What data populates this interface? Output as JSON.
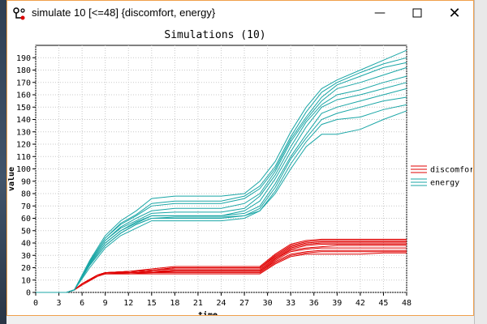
{
  "window": {
    "title": "simulate 10 [<=48] {discomfort, energy}",
    "controls": {
      "minimize": "—",
      "maximize": "☐",
      "close": "✕"
    }
  },
  "chart_data": {
    "type": "line",
    "title": "Simulations (10)",
    "xlabel": "time",
    "ylabel": "value",
    "xlim": [
      0,
      48
    ],
    "ylim": [
      0,
      200
    ],
    "xticks": [
      0,
      3,
      6,
      9,
      12,
      15,
      18,
      21,
      24,
      27,
      30,
      33,
      36,
      39,
      42,
      45,
      48
    ],
    "yticks": [
      0,
      10,
      20,
      30,
      40,
      50,
      60,
      70,
      80,
      90,
      100,
      110,
      120,
      130,
      140,
      150,
      160,
      170,
      180,
      190
    ],
    "grid": true,
    "legend_position": "right",
    "colors": {
      "discomfort": "#e00000",
      "energy": "#1aa6a6"
    },
    "series": [
      {
        "name": "discomfort",
        "runs": [
          {
            "x": [
              0,
              4,
              5,
              6,
              8,
              9,
              12,
              15,
              18,
              21,
              24,
              27,
              29,
              31,
              33,
              35,
              37,
              39,
              42,
              45,
              48
            ],
            "y": [
              0,
              0,
              2,
              6,
              13,
              15,
              15,
              16,
              16,
              16,
              16,
              16,
              16,
              24,
              30,
              32,
              33,
              33,
              33,
              33,
              33
            ]
          },
          {
            "x": [
              0,
              4,
              5,
              6,
              8,
              9,
              12,
              15,
              18,
              21,
              24,
              27,
              29,
              31,
              33,
              35,
              37,
              39,
              42,
              45,
              48
            ],
            "y": [
              0,
              0,
              2,
              7,
              13,
              15,
              15,
              15,
              15,
              15,
              15,
              15,
              15,
              23,
              29,
              31,
              31,
              31,
              31,
              32,
              32
            ]
          },
          {
            "x": [
              0,
              4,
              5,
              6,
              8,
              9,
              12,
              15,
              18,
              21,
              24,
              27,
              29,
              31,
              33,
              35,
              37,
              39,
              42,
              45,
              48
            ],
            "y": [
              0,
              0,
              2,
              7,
              14,
              15,
              16,
              16,
              17,
              17,
              17,
              17,
              17,
              25,
              31,
              33,
              34,
              34,
              34,
              34,
              34
            ]
          },
          {
            "x": [
              0,
              4,
              5,
              6,
              8,
              9,
              12,
              15,
              18,
              21,
              24,
              27,
              29,
              31,
              33,
              35,
              37,
              39,
              42,
              45,
              48
            ],
            "y": [
              0,
              0,
              2,
              7,
              14,
              16,
              16,
              17,
              17,
              17,
              17,
              17,
              17,
              26,
              33,
              35,
              36,
              36,
              36,
              36,
              36
            ]
          },
          {
            "x": [
              0,
              4,
              5,
              6,
              8,
              9,
              12,
              15,
              18,
              21,
              24,
              27,
              29,
              31,
              33,
              35,
              37,
              39,
              42,
              45,
              48
            ],
            "y": [
              0,
              0,
              2,
              7,
              14,
              16,
              16,
              17,
              18,
              18,
              18,
              18,
              18,
              27,
              34,
              36,
              37,
              38,
              38,
              38,
              38
            ]
          },
          {
            "x": [
              0,
              4,
              5,
              6,
              8,
              9,
              12,
              15,
              18,
              21,
              24,
              27,
              29,
              31,
              33,
              35,
              37,
              39,
              42,
              45,
              48
            ],
            "y": [
              0,
              0,
              2,
              7,
              14,
              16,
              16,
              17,
              18,
              18,
              18,
              18,
              18,
              27,
              35,
              38,
              39,
              39,
              39,
              39,
              39
            ]
          },
          {
            "x": [
              0,
              4,
              5,
              6,
              8,
              9,
              12,
              15,
              18,
              21,
              24,
              27,
              29,
              31,
              33,
              35,
              37,
              39,
              42,
              45,
              48
            ],
            "y": [
              0,
              0,
              2,
              7,
              14,
              16,
              17,
              18,
              19,
              19,
              19,
              19,
              19,
              28,
              36,
              39,
              40,
              40,
              40,
              40,
              40
            ]
          },
          {
            "x": [
              0,
              4,
              5,
              6,
              8,
              9,
              12,
              15,
              18,
              21,
              24,
              27,
              29,
              31,
              33,
              35,
              37,
              39,
              42,
              45,
              48
            ],
            "y": [
              0,
              0,
              2,
              7,
              14,
              16,
              17,
              18,
              20,
              20,
              20,
              20,
              20,
              29,
              37,
              40,
              41,
              41,
              41,
              41,
              41
            ]
          },
          {
            "x": [
              0,
              4,
              5,
              6,
              8,
              9,
              12,
              15,
              18,
              21,
              24,
              27,
              29,
              31,
              33,
              35,
              37,
              39,
              42,
              45,
              48
            ],
            "y": [
              0,
              0,
              2,
              7,
              14,
              16,
              17,
              18,
              20,
              20,
              20,
              20,
              20,
              30,
              38,
              41,
              42,
              42,
              42,
              42,
              42
            ]
          },
          {
            "x": [
              0,
              4,
              5,
              6,
              8,
              9,
              12,
              15,
              18,
              21,
              24,
              27,
              29,
              31,
              33,
              35,
              37,
              39,
              42,
              45,
              48
            ],
            "y": [
              0,
              0,
              2,
              7,
              14,
              16,
              17,
              19,
              21,
              21,
              21,
              21,
              21,
              31,
              39,
              42,
              43,
              43,
              43,
              43,
              43
            ]
          }
        ]
      },
      {
        "name": "energy",
        "runs": [
          {
            "x": [
              0,
              4,
              5,
              7,
              9,
              11,
              13,
              15,
              18,
              21,
              24,
              27,
              29,
              31,
              33,
              35,
              37,
              39,
              42,
              45,
              48
            ],
            "y": [
              0,
              0,
              2,
              22,
              38,
              48,
              55,
              60,
              60,
              60,
              60,
              62,
              68,
              85,
              108,
              125,
              140,
              145,
              150,
              155,
              158
            ]
          },
          {
            "x": [
              0,
              4,
              5,
              7,
              9,
              11,
              13,
              15,
              18,
              21,
              24,
              27,
              29,
              31,
              33,
              35,
              37,
              39,
              42,
              45,
              48
            ],
            "y": [
              0,
              0,
              2,
              20,
              36,
              46,
              52,
              58,
              58,
              58,
              58,
              60,
              66,
              80,
              100,
              118,
              128,
              128,
              132,
              140,
              147
            ]
          },
          {
            "x": [
              0,
              4,
              5,
              7,
              9,
              11,
              13,
              15,
              18,
              21,
              24,
              27,
              29,
              31,
              33,
              35,
              37,
              39,
              42,
              45,
              48
            ],
            "y": [
              0,
              0,
              2,
              22,
              38,
              48,
              55,
              60,
              61,
              61,
              61,
              62,
              66,
              82,
              104,
              122,
              136,
              140,
              142,
              148,
              152
            ]
          },
          {
            "x": [
              0,
              4,
              5,
              7,
              9,
              11,
              13,
              15,
              18,
              21,
              24,
              27,
              29,
              31,
              33,
              35,
              37,
              39,
              42,
              45,
              48
            ],
            "y": [
              0,
              0,
              2,
              23,
              40,
              50,
              56,
              62,
              62,
              62,
              62,
              64,
              70,
              88,
              110,
              128,
              145,
              150,
              155,
              160,
              165
            ]
          },
          {
            "x": [
              0,
              4,
              5,
              7,
              9,
              11,
              13,
              15,
              18,
              21,
              24,
              27,
              29,
              31,
              33,
              35,
              37,
              39,
              42,
              45,
              48
            ],
            "y": [
              0,
              0,
              2,
              23,
              40,
              50,
              57,
              62,
              62,
              62,
              62,
              66,
              74,
              92,
              114,
              134,
              150,
              156,
              160,
              165,
              170
            ]
          },
          {
            "x": [
              0,
              4,
              5,
              7,
              9,
              11,
              13,
              15,
              18,
              21,
              24,
              27,
              29,
              31,
              33,
              35,
              37,
              39,
              42,
              45,
              48
            ],
            "y": [
              0,
              0,
              2,
              24,
              42,
              52,
              58,
              64,
              65,
              65,
              65,
              68,
              78,
              95,
              118,
              138,
              152,
              160,
              164,
              170,
              175
            ]
          },
          {
            "x": [
              0,
              4,
              5,
              7,
              9,
              11,
              13,
              15,
              18,
              21,
              24,
              27,
              29,
              31,
              33,
              35,
              37,
              39,
              42,
              45,
              48
            ],
            "y": [
              0,
              0,
              2,
              24,
              42,
              53,
              60,
              66,
              68,
              68,
              68,
              72,
              80,
              98,
              122,
              140,
              155,
              165,
              170,
              176,
              182
            ]
          },
          {
            "x": [
              0,
              4,
              5,
              7,
              9,
              11,
              13,
              15,
              18,
              21,
              24,
              27,
              29,
              31,
              33,
              35,
              37,
              39,
              42,
              45,
              48
            ],
            "y": [
              0,
              0,
              2,
              25,
              44,
              55,
              62,
              70,
              72,
              72,
              72,
              76,
              84,
              100,
              124,
              142,
              158,
              168,
              175,
              182,
              186
            ]
          },
          {
            "x": [
              0,
              4,
              5,
              7,
              9,
              11,
              13,
              15,
              18,
              21,
              24,
              27,
              29,
              31,
              33,
              35,
              37,
              39,
              42,
              45,
              48
            ],
            "y": [
              0,
              0,
              2,
              25,
              44,
              56,
              63,
              72,
              74,
              74,
              74,
              78,
              86,
              102,
              126,
              146,
              162,
              170,
              178,
              185,
              190
            ]
          },
          {
            "x": [
              0,
              4,
              5,
              7,
              9,
              11,
              13,
              15,
              18,
              21,
              24,
              27,
              29,
              31,
              33,
              35,
              37,
              39,
              42,
              45,
              48
            ],
            "y": [
              0,
              0,
              2,
              26,
              46,
              58,
              66,
              76,
              78,
              78,
              78,
              80,
              90,
              106,
              130,
              150,
              165,
              172,
              180,
              188,
              196
            ]
          }
        ]
      }
    ]
  }
}
